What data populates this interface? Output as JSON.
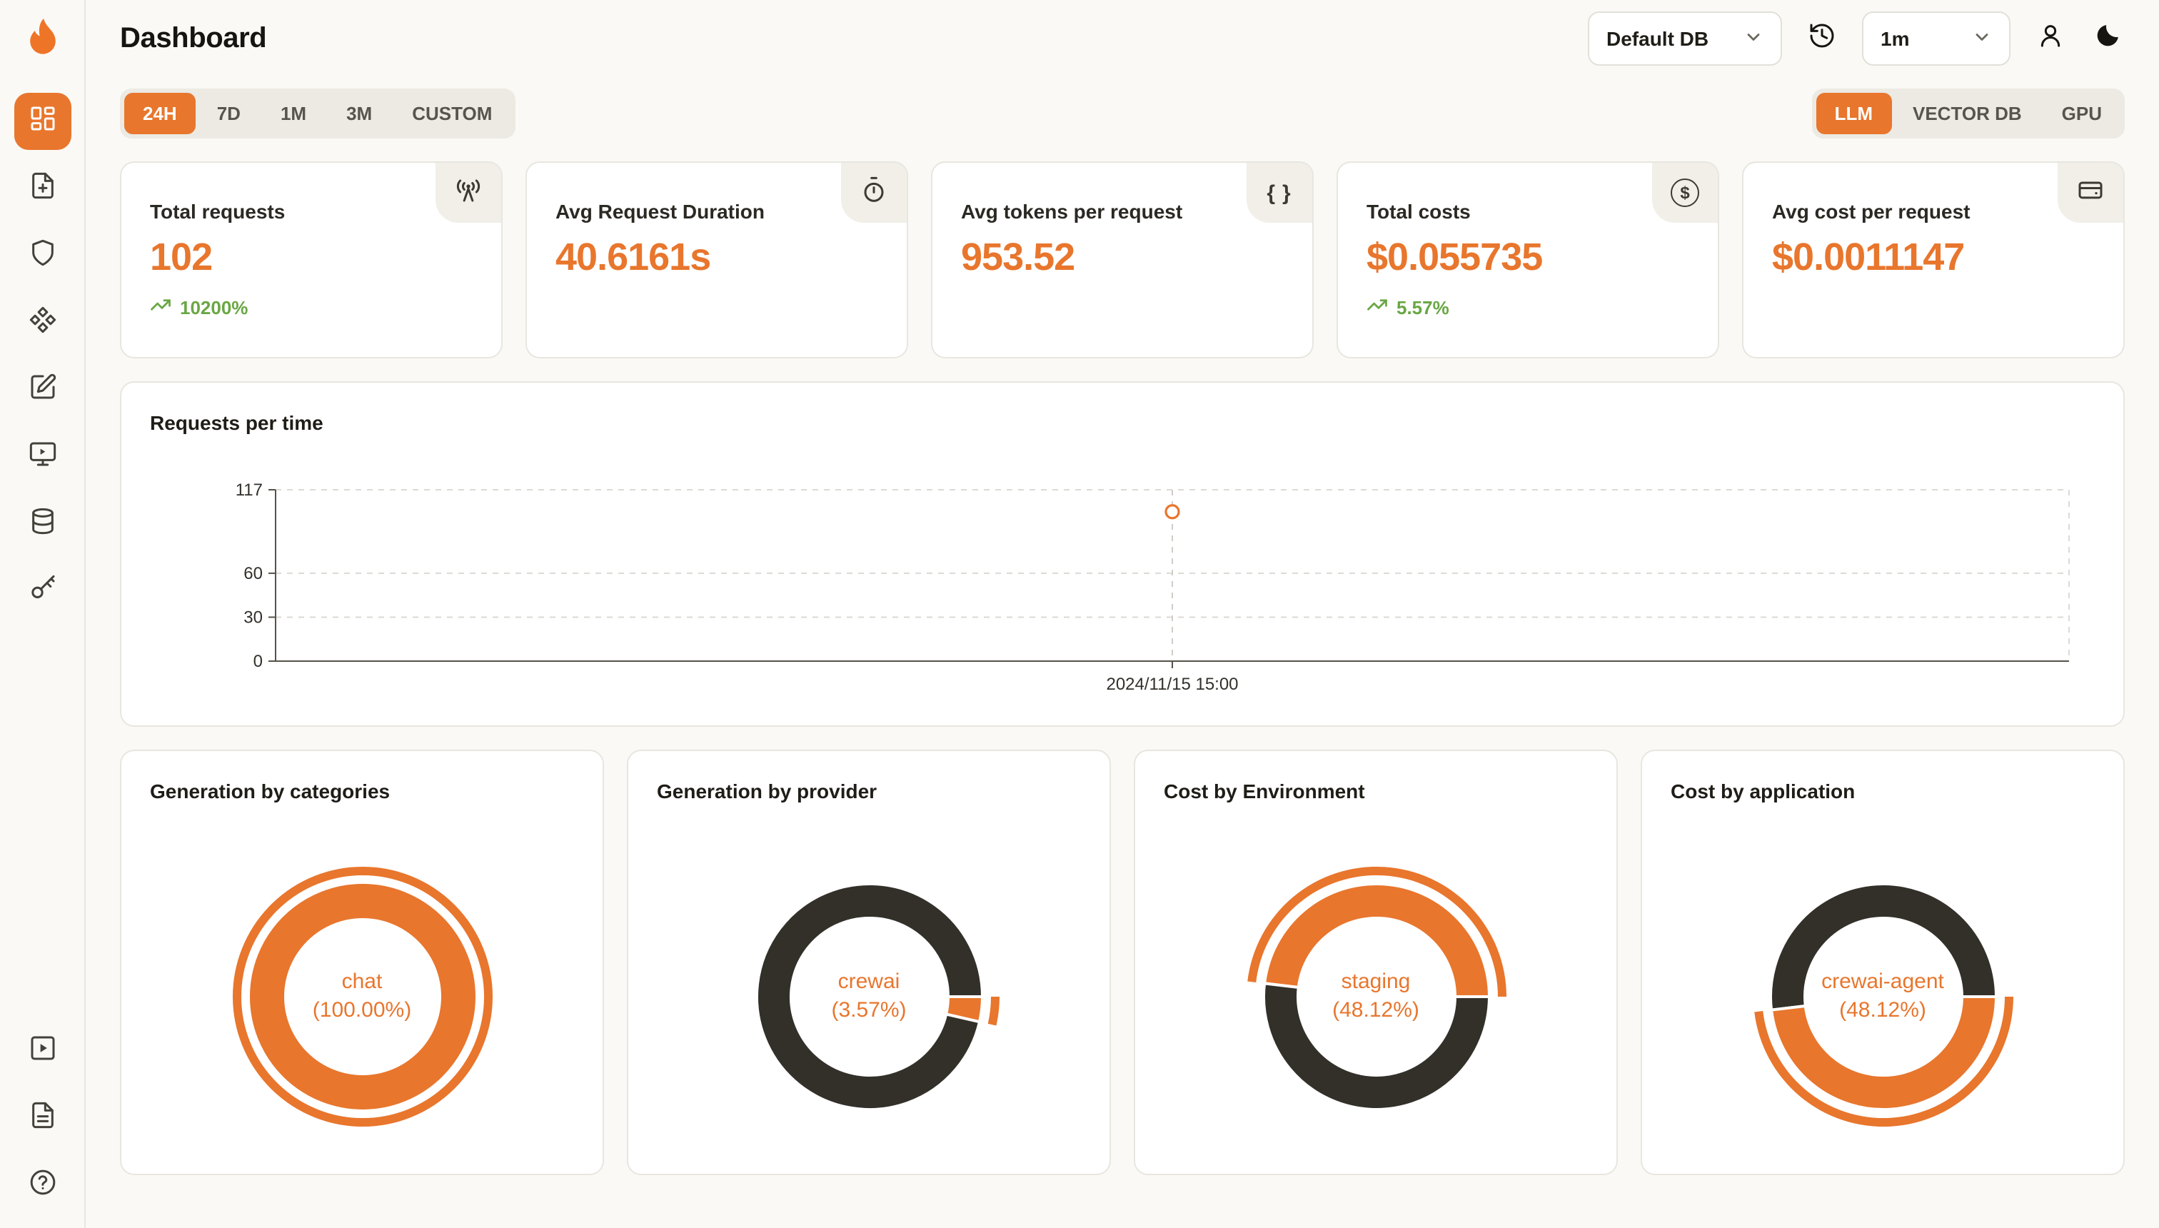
{
  "header": {
    "title": "Dashboard",
    "database_select": {
      "value": "Default DB",
      "icon": "chevron-down-icon"
    },
    "refresh_select": {
      "value": "1m",
      "icon": "chevron-down-icon"
    },
    "icons": [
      "history-icon",
      "user-icon",
      "moon-icon"
    ]
  },
  "sidebar": {
    "items": [
      {
        "icon": "dashboard-grid-icon",
        "active": true
      },
      {
        "icon": "file-request-icon",
        "active": false
      },
      {
        "icon": "shield-icon",
        "active": false
      },
      {
        "icon": "components-icon",
        "active": false
      },
      {
        "icon": "clipboard-edit-icon",
        "active": false
      },
      {
        "icon": "monitor-play-icon",
        "active": false
      },
      {
        "icon": "database-icon",
        "active": false
      },
      {
        "icon": "key-icon",
        "active": false
      }
    ],
    "footer_items": [
      {
        "icon": "play-square-icon"
      },
      {
        "icon": "doc-lines-icon"
      },
      {
        "icon": "help-circle-icon"
      }
    ]
  },
  "filters": {
    "time_ranges": [
      "24H",
      "7D",
      "1M",
      "3M",
      "CUSTOM"
    ],
    "active_time_range": "24H",
    "sources": [
      "LLM",
      "VECTOR DB",
      "GPU"
    ],
    "active_source": "LLM"
  },
  "stats": [
    {
      "label": "Total requests",
      "value": "102",
      "delta": "10200%",
      "icon": "radio-tower-icon"
    },
    {
      "label": "Avg Request Duration",
      "value": "40.6161s",
      "icon": "stopwatch-icon"
    },
    {
      "label": "Avg tokens per request",
      "value": "953.52",
      "icon": "braces-icon"
    },
    {
      "label": "Total costs",
      "value": "$0.055735",
      "delta": "5.57%",
      "icon": "dollar-circle-icon"
    },
    {
      "label": "Avg cost per request",
      "value": "$0.0011147",
      "icon": "wallet-icon"
    }
  ],
  "colors": {
    "accent": "#e8762d",
    "dark_slice": "#33302a",
    "positive": "#69a744"
  },
  "chart_data": [
    {
      "type": "scatter",
      "title": "Requests per time",
      "x_labels": [
        "2024/11/15 15:00"
      ],
      "points": [
        {
          "x": "2024/11/15 15:00",
          "y": 102
        }
      ],
      "yticks": [
        0,
        30,
        60,
        117
      ],
      "ylim": [
        0,
        117
      ],
      "grid": "dashed",
      "point_color": "#e8762d"
    },
    {
      "type": "pie",
      "title": "Generation by categories",
      "center_label": "chat",
      "center_value": "(100.00%)",
      "slices": [
        {
          "name": "chat",
          "value": 100.0,
          "color": "#e8762d",
          "active": true
        }
      ]
    },
    {
      "type": "pie",
      "title": "Generation by provider",
      "center_label": "crewai",
      "center_value": "(3.57%)",
      "slices": [
        {
          "value": 96.43,
          "color": "#33302a"
        },
        {
          "name": "crewai",
          "value": 3.57,
          "color": "#e8762d",
          "active": true
        }
      ]
    },
    {
      "type": "pie",
      "title": "Cost by Environment",
      "center_label": "staging",
      "center_value": "(48.12%)",
      "slices": [
        {
          "name": "staging",
          "value": 48.12,
          "color": "#e8762d",
          "active": true
        },
        {
          "value": 51.88,
          "color": "#33302a"
        }
      ]
    },
    {
      "type": "pie",
      "title": "Cost by application",
      "center_label": "crewai-agent",
      "center_value": "(48.12%)",
      "slices": [
        {
          "value": 51.88,
          "color": "#33302a"
        },
        {
          "name": "crewai-agent",
          "value": 48.12,
          "color": "#e8762d",
          "active": true
        }
      ]
    }
  ]
}
